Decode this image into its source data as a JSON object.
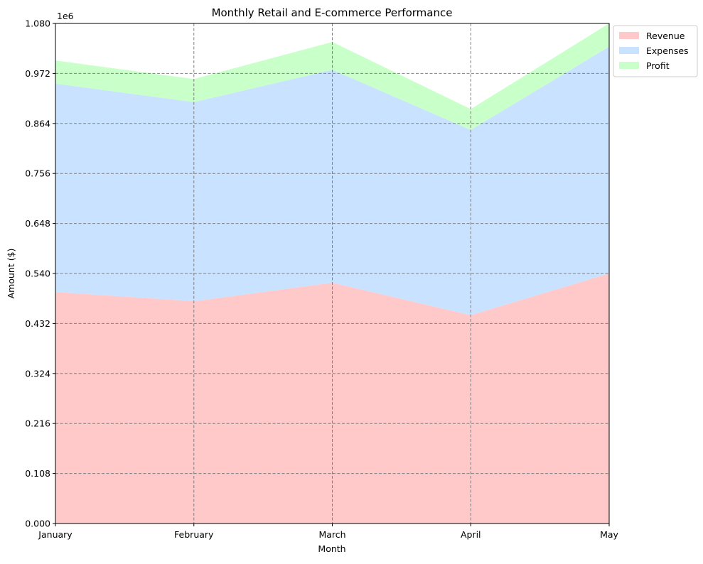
{
  "chart_data": {
    "type": "area",
    "stacked": true,
    "title": "Monthly Retail and E-commerce Performance",
    "xlabel": "Month",
    "ylabel": "Amount ($)",
    "y_offset_text": "1e6",
    "categories": [
      "January",
      "February",
      "March",
      "April",
      "May"
    ],
    "series": [
      {
        "name": "Revenue",
        "color": "#ffc9c9",
        "values": [
          500000,
          480000,
          520000,
          450000,
          540000
        ]
      },
      {
        "name": "Expenses",
        "color": "#c9e2ff",
        "values": [
          450000,
          430000,
          460000,
          400000,
          490000
        ]
      },
      {
        "name": "Profit",
        "color": "#c9ffc9",
        "values": [
          50000,
          50000,
          60000,
          45000,
          50000
        ]
      }
    ],
    "ylim": [
      0,
      1080000
    ],
    "y_ticks": [
      0,
      108000,
      216000,
      324000,
      432000,
      540000,
      648000,
      756000,
      864000,
      972000,
      1080000
    ],
    "y_tick_labels": [
      "0.000",
      "0.108",
      "0.216",
      "0.324",
      "0.432",
      "0.540",
      "0.648",
      "0.756",
      "0.864",
      "0.972",
      "1.080"
    ],
    "grid": true,
    "legend_position": "upper-right-outside"
  }
}
